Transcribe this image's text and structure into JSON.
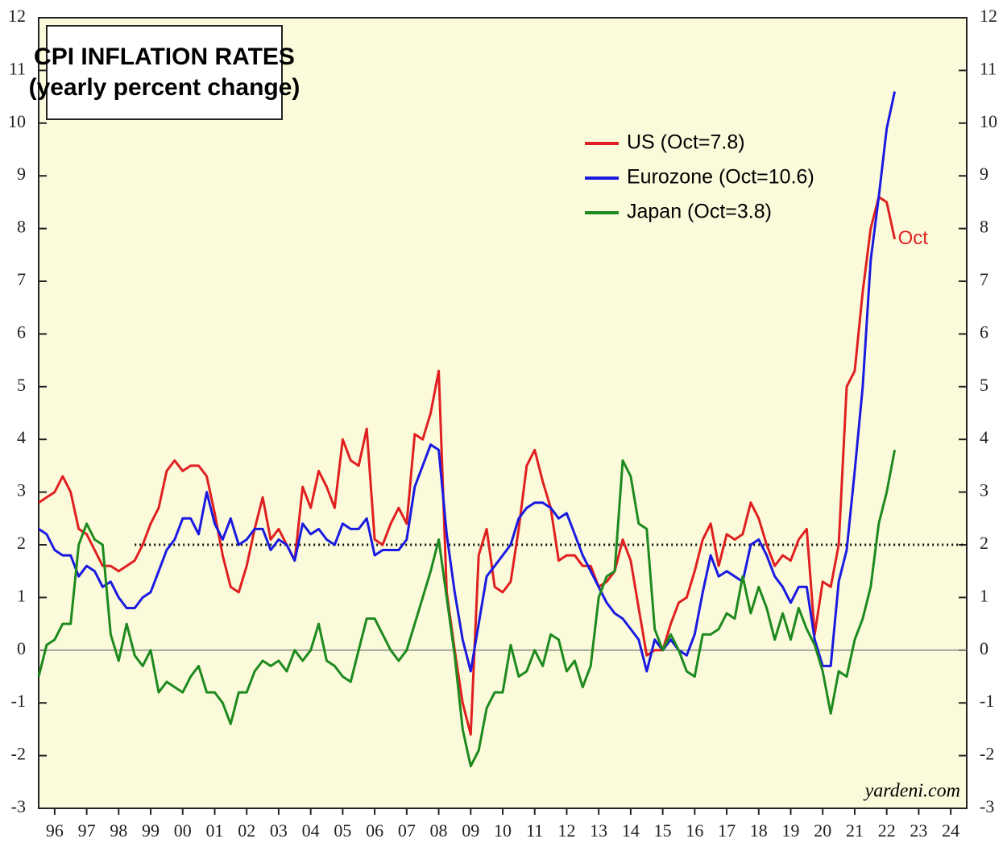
{
  "chart_data": {
    "type": "line",
    "title": "CPI INFLATION RATES",
    "subtitle": "(yearly percent change)",
    "source": "yardeni.com",
    "x": [
      1996,
      1996.25,
      1996.5,
      1996.75,
      1997,
      1997.25,
      1997.5,
      1997.75,
      1998,
      1998.25,
      1998.5,
      1998.75,
      1999,
      1999.25,
      1999.5,
      1999.75,
      2000,
      2000.25,
      2000.5,
      2000.75,
      2001,
      2001.25,
      2001.5,
      2001.75,
      2002,
      2002.25,
      2002.5,
      2002.75,
      2003,
      2003.25,
      2003.5,
      2003.75,
      2004,
      2004.25,
      2004.5,
      2004.75,
      2005,
      2005.25,
      2005.5,
      2005.75,
      2006,
      2006.25,
      2006.5,
      2006.75,
      2007,
      2007.25,
      2007.5,
      2007.75,
      2008,
      2008.25,
      2008.5,
      2008.75,
      2009,
      2009.25,
      2009.5,
      2009.75,
      2010,
      2010.25,
      2010.5,
      2010.75,
      2011,
      2011.25,
      2011.5,
      2011.75,
      2012,
      2012.25,
      2012.5,
      2012.75,
      2013,
      2013.25,
      2013.5,
      2013.75,
      2014,
      2014.25,
      2014.5,
      2014.75,
      2015,
      2015.25,
      2015.5,
      2015.75,
      2016,
      2016.25,
      2016.5,
      2016.75,
      2017,
      2017.25,
      2017.5,
      2017.75,
      2018,
      2018.25,
      2018.5,
      2018.75,
      2019,
      2019.25,
      2019.5,
      2019.75,
      2020,
      2020.25,
      2020.5,
      2020.75,
      2021,
      2021.25,
      2021.5,
      2021.75,
      2022,
      2022.25,
      2022.5,
      2022.75
    ],
    "series": [
      {
        "name": "US (Oct=7.8)",
        "color": "#e02020",
        "values": [
          2.8,
          2.9,
          3.0,
          3.3,
          3.0,
          2.3,
          2.2,
          1.9,
          1.6,
          1.6,
          1.5,
          1.6,
          1.7,
          2.0,
          2.4,
          2.7,
          3.4,
          3.6,
          3.4,
          3.5,
          3.5,
          3.3,
          2.6,
          1.8,
          1.2,
          1.1,
          1.6,
          2.3,
          2.9,
          2.1,
          2.3,
          2.0,
          1.7,
          3.1,
          2.7,
          3.4,
          3.1,
          2.7,
          4.0,
          3.6,
          3.5,
          4.2,
          2.1,
          2.0,
          2.4,
          2.7,
          2.4,
          4.1,
          4.0,
          4.5,
          5.3,
          1.1,
          0.0,
          -1.0,
          -1.6,
          1.8,
          2.3,
          1.2,
          1.1,
          1.3,
          2.3,
          3.5,
          3.8,
          3.2,
          2.7,
          1.7,
          1.8,
          1.8,
          1.6,
          1.6,
          1.2,
          1.3,
          1.5,
          2.1,
          1.7,
          0.8,
          -0.1,
          0.0,
          0.0,
          0.5,
          0.9,
          1.0,
          1.5,
          2.1,
          2.4,
          1.6,
          2.2,
          2.1,
          2.2,
          2.8,
          2.5,
          2.0,
          1.6,
          1.8,
          1.7,
          2.1,
          2.3,
          0.3,
          1.3,
          1.2,
          2.0,
          5.0,
          5.3,
          6.8,
          8.0,
          8.6,
          8.5,
          7.8
        ]
      },
      {
        "name": "Eurozone (Oct=10.6)",
        "color": "#1a1ae0",
        "values": [
          2.3,
          2.2,
          1.9,
          1.8,
          1.8,
          1.4,
          1.6,
          1.5,
          1.2,
          1.3,
          1.0,
          0.8,
          0.8,
          1.0,
          1.1,
          1.5,
          1.9,
          2.1,
          2.5,
          2.5,
          2.2,
          3.0,
          2.4,
          2.1,
          2.5,
          2.0,
          2.1,
          2.3,
          2.3,
          1.9,
          2.1,
          2.0,
          1.7,
          2.4,
          2.2,
          2.3,
          2.1,
          2.0,
          2.4,
          2.3,
          2.3,
          2.5,
          1.8,
          1.9,
          1.9,
          1.9,
          2.1,
          3.1,
          3.5,
          3.9,
          3.8,
          2.2,
          1.1,
          0.2,
          -0.4,
          0.5,
          1.4,
          1.6,
          1.8,
          2.0,
          2.5,
          2.7,
          2.8,
          2.8,
          2.7,
          2.5,
          2.6,
          2.2,
          1.8,
          1.5,
          1.2,
          0.9,
          0.7,
          0.6,
          0.4,
          0.2,
          -0.4,
          0.2,
          0.0,
          0.2,
          0.0,
          -0.1,
          0.3,
          1.1,
          1.8,
          1.4,
          1.5,
          1.4,
          1.3,
          2.0,
          2.1,
          1.8,
          1.4,
          1.2,
          0.9,
          1.2,
          1.2,
          0.2,
          -0.3,
          -0.3,
          1.3,
          1.9,
          3.4,
          5.0,
          7.4,
          8.6,
          9.9,
          10.6
        ]
      },
      {
        "name": "Japan (Oct=3.8)",
        "color": "#1e8a1e",
        "values": [
          -0.5,
          0.1,
          0.2,
          0.5,
          0.5,
          2.0,
          2.4,
          2.1,
          2.0,
          0.3,
          -0.2,
          0.5,
          -0.1,
          -0.3,
          0.0,
          -0.8,
          -0.6,
          -0.7,
          -0.8,
          -0.5,
          -0.3,
          -0.8,
          -0.8,
          -1.0,
          -1.4,
          -0.8,
          -0.8,
          -0.4,
          -0.2,
          -0.3,
          -0.2,
          -0.4,
          0.0,
          -0.2,
          0.0,
          0.5,
          -0.2,
          -0.3,
          -0.5,
          -0.6,
          0.0,
          0.6,
          0.6,
          0.3,
          0.0,
          -0.2,
          0.0,
          0.5,
          1.0,
          1.5,
          2.1,
          1.0,
          -0.1,
          -1.5,
          -2.2,
          -1.9,
          -1.1,
          -0.8,
          -0.8,
          0.1,
          -0.5,
          -0.4,
          0.0,
          -0.3,
          0.3,
          0.2,
          -0.4,
          -0.2,
          -0.7,
          -0.3,
          1.0,
          1.4,
          1.5,
          3.6,
          3.3,
          2.4,
          2.3,
          0.4,
          0.0,
          0.3,
          0.0,
          -0.4,
          -0.5,
          0.3,
          0.3,
          0.4,
          0.7,
          0.6,
          1.4,
          0.7,
          1.2,
          0.8,
          0.2,
          0.7,
          0.2,
          0.8,
          0.4,
          0.1,
          -0.4,
          -1.2,
          -0.4,
          -0.5,
          0.2,
          0.6,
          1.2,
          2.4,
          3.0,
          3.8
        ]
      }
    ],
    "annotations": [
      {
        "text": "Oct",
        "x": 2022.75,
        "y": 7.8,
        "color": "#e02020"
      }
    ],
    "reference_line": {
      "value": 2,
      "from": 1999
    },
    "zero_line": true,
    "xlim": [
      1996,
      2025
    ],
    "xticks": [
      {
        "value": 1996.5,
        "label": "96"
      },
      {
        "value": 1997.5,
        "label": "97"
      },
      {
        "value": 1998.5,
        "label": "98"
      },
      {
        "value": 1999.5,
        "label": "99"
      },
      {
        "value": 2000.5,
        "label": "00"
      },
      {
        "value": 2001.5,
        "label": "01"
      },
      {
        "value": 2002.5,
        "label": "02"
      },
      {
        "value": 2003.5,
        "label": "03"
      },
      {
        "value": 2004.5,
        "label": "04"
      },
      {
        "value": 2005.5,
        "label": "05"
      },
      {
        "value": 2006.5,
        "label": "06"
      },
      {
        "value": 2007.5,
        "label": "07"
      },
      {
        "value": 2008.5,
        "label": "08"
      },
      {
        "value": 2009.5,
        "label": "09"
      },
      {
        "value": 2010.5,
        "label": "10"
      },
      {
        "value": 2011.5,
        "label": "11"
      },
      {
        "value": 2012.5,
        "label": "12"
      },
      {
        "value": 2013.5,
        "label": "13"
      },
      {
        "value": 2014.5,
        "label": "14"
      },
      {
        "value": 2015.5,
        "label": "15"
      },
      {
        "value": 2016.5,
        "label": "16"
      },
      {
        "value": 2017.5,
        "label": "17"
      },
      {
        "value": 2018.5,
        "label": "18"
      },
      {
        "value": 2019.5,
        "label": "19"
      },
      {
        "value": 2020.5,
        "label": "20"
      },
      {
        "value": 2021.5,
        "label": "21"
      },
      {
        "value": 2022.5,
        "label": "22"
      },
      {
        "value": 2023.5,
        "label": "23"
      },
      {
        "value": 2024.5,
        "label": "24"
      }
    ],
    "ylim": [
      -3,
      12
    ],
    "yticks": [
      -3,
      -2,
      -1,
      0,
      1,
      2,
      3,
      4,
      5,
      6,
      7,
      8,
      9,
      10,
      11,
      12
    ],
    "grid": false,
    "legend": "upper right",
    "background": "#fbfbdc"
  }
}
